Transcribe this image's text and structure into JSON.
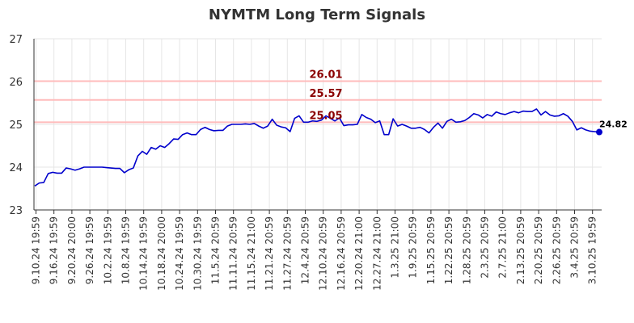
{
  "chart_data": {
    "type": "line",
    "title": "NYMTM Long Term Signals",
    "xlabel": "",
    "ylabel": "",
    "ylim": [
      23,
      27
    ],
    "yticks": [
      "23",
      "24",
      "25",
      "26",
      "27"
    ],
    "grid": true,
    "colors": {
      "line": "#0000cc",
      "levels": "#ffbbbb",
      "level_labels": "#8b0000",
      "grid": "#e6e6e6"
    },
    "x_tick_labels": [
      "9.10.24 19:59",
      "9.16.24 19:59",
      "9.20.24 20:00",
      "9.26.24 19:59",
      "10.2.24 19:59",
      "10.8.24 19:59",
      "10.14.24 19:59",
      "10.18.24 20:00",
      "10.24.24 19:59",
      "10.30.24 19:59",
      "11.5.24 20:59",
      "11.11.24 20:59",
      "11.15.24 21:00",
      "11.21.24 20:59",
      "11.27.24 20:59",
      "12.4.24 20:59",
      "12.10.24 20:59",
      "12.16.24 20:59",
      "12.20.24 21:00",
      "12.27.24 21:00",
      "1.3.25 21:00",
      "1.9.25 20:59",
      "1.15.25 20:59",
      "1.22.25 20:59",
      "1.28.25 20:59",
      "2.3.25 20:59",
      "2.7.25 21:00",
      "2.13.25 20:59",
      "2.20.25 20:59",
      "2.26.25 20:59",
      "3.4.25 20:59",
      "3.10.25 19:59"
    ],
    "values": [
      23.56,
      23.63,
      23.64,
      23.85,
      23.88,
      23.86,
      23.86,
      23.98,
      23.96,
      23.93,
      23.96,
      24.0,
      24.0,
      24.0,
      24.0,
      24.0,
      23.99,
      23.98,
      23.97,
      23.97,
      23.87,
      23.94,
      23.98,
      24.26,
      24.37,
      24.3,
      24.46,
      24.42,
      24.5,
      24.46,
      24.55,
      24.66,
      24.65,
      24.76,
      24.8,
      24.76,
      24.76,
      24.88,
      24.93,
      24.88,
      24.85,
      24.86,
      24.86,
      24.96,
      25.0,
      25.0,
      25.0,
      25.01,
      25.0,
      25.02,
      24.96,
      24.91,
      24.96,
      25.12,
      24.98,
      24.94,
      24.92,
      24.83,
      25.14,
      25.2,
      25.05,
      25.05,
      25.08,
      25.07,
      25.1,
      25.2,
      25.14,
      25.08,
      25.15,
      24.97,
      24.99,
      24.99,
      25.0,
      25.23,
      25.16,
      25.12,
      25.04,
      25.08,
      24.76,
      24.76,
      25.13,
      24.96,
      25.0,
      24.96,
      24.91,
      24.91,
      24.93,
      24.88,
      24.8,
      24.93,
      25.03,
      24.91,
      25.07,
      25.12,
      25.05,
      25.06,
      25.09,
      25.16,
      25.25,
      25.22,
      25.15,
      25.23,
      25.19,
      25.29,
      25.25,
      25.23,
      25.27,
      25.3,
      25.27,
      25.31,
      25.3,
      25.3,
      25.36,
      25.22,
      25.3,
      25.22,
      25.19,
      25.2,
      25.25,
      25.19,
      25.07,
      24.87,
      24.92,
      24.87,
      24.84,
      24.83,
      24.82
    ],
    "levels": [
      {
        "value": 26.01,
        "label": "26.01"
      },
      {
        "value": 25.57,
        "label": "25.57"
      },
      {
        "value": 25.05,
        "label": "25.05"
      }
    ],
    "last_value_label": "24.82"
  }
}
